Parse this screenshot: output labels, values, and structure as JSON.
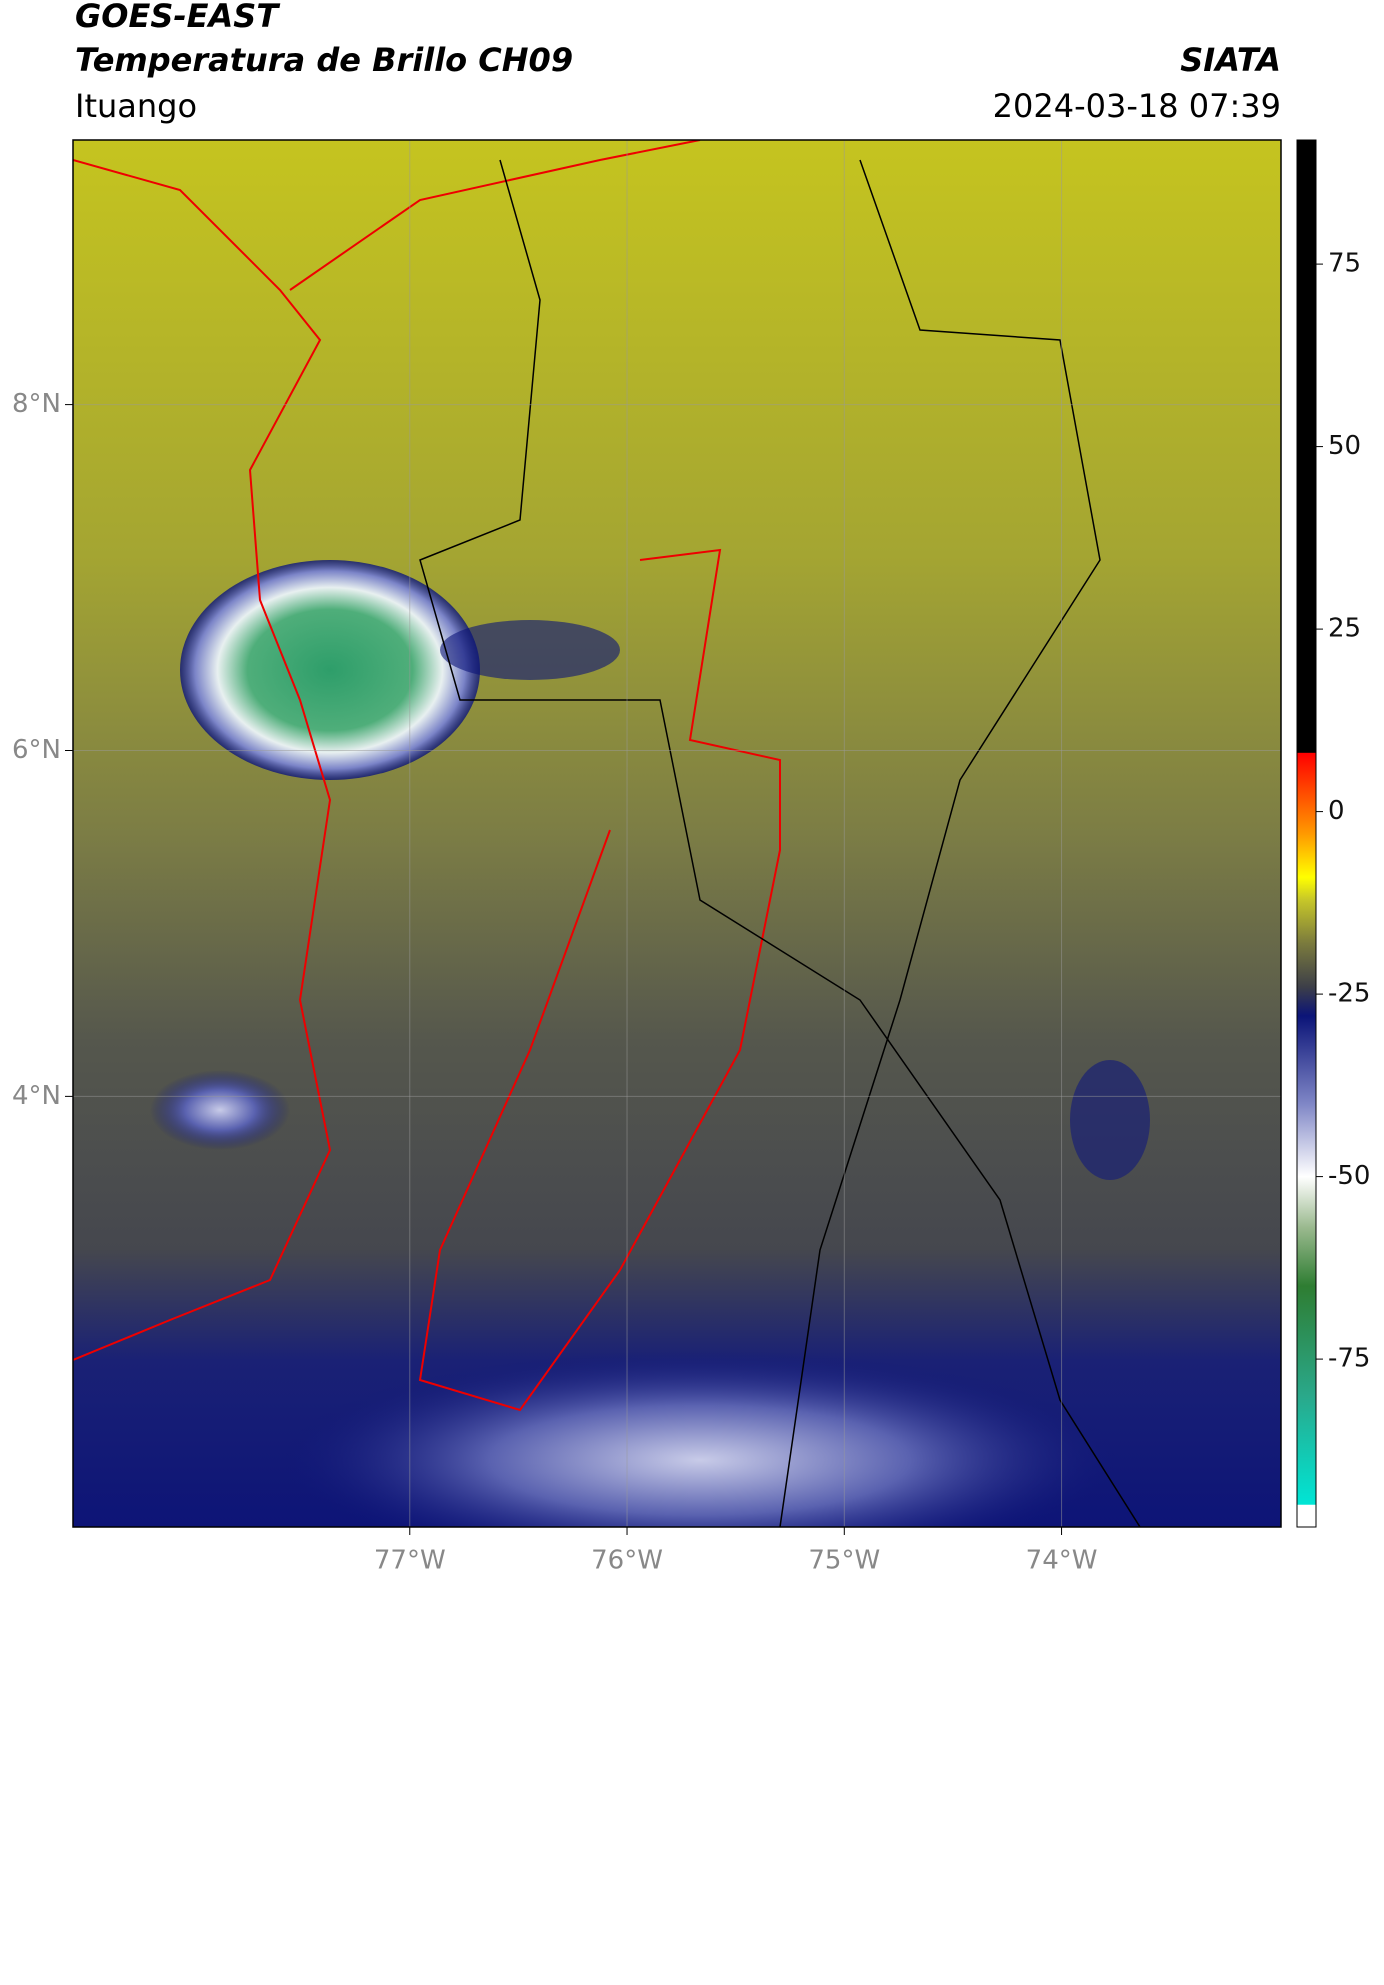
{
  "chart_data": {
    "type": "map",
    "title": "GOES-EAST",
    "subtitle": "Temperatura de Brillo CH09",
    "source": "SIATA",
    "location": "Ituango",
    "date": "2024-03-18 07:39",
    "xlim": [
      -78.55,
      -72.99
    ],
    "ylim": [
      1.51,
      9.53
    ],
    "xticks": [
      {
        "value": -77,
        "label": "77°W"
      },
      {
        "value": -76,
        "label": "76°W"
      },
      {
        "value": -75,
        "label": "75°W"
      },
      {
        "value": -74,
        "label": "74°W"
      }
    ],
    "yticks": [
      {
        "value": 4,
        "label": "4°N"
      },
      {
        "value": 6,
        "label": "6°N"
      },
      {
        "value": 8,
        "label": "8°N"
      }
    ],
    "grid": true,
    "colorbar": {
      "lim": [
        -98,
        92
      ],
      "ticks": [
        -75,
        -50,
        -25,
        0,
        25,
        50,
        75
      ],
      "stops": [
        {
          "value": -98,
          "color": "#ffffff"
        },
        {
          "value": -95,
          "color": "#ffffff"
        },
        {
          "value": -94.9,
          "color": "#00e5d5"
        },
        {
          "value": -80,
          "color": "#2aa88a"
        },
        {
          "value": -65,
          "color": "#2e7d32"
        },
        {
          "value": -57,
          "color": "#9ab98e"
        },
        {
          "value": -50,
          "color": "#ffffff"
        },
        {
          "value": -40,
          "color": "#7f86c6"
        },
        {
          "value": -28,
          "color": "#0b1478"
        },
        {
          "value": -24,
          "color": "#3d3f48"
        },
        {
          "value": -18,
          "color": "#7b7b3d"
        },
        {
          "value": -12,
          "color": "#c8c828"
        },
        {
          "value": -9,
          "color": "#ffff00"
        },
        {
          "value": -3,
          "color": "#ff9900"
        },
        {
          "value": 5,
          "color": "#ff2a00"
        },
        {
          "value": 8,
          "color": "#ff0000"
        },
        {
          "value": 8.1,
          "color": "#000000"
        },
        {
          "value": 92,
          "color": "#000000"
        }
      ]
    }
  }
}
